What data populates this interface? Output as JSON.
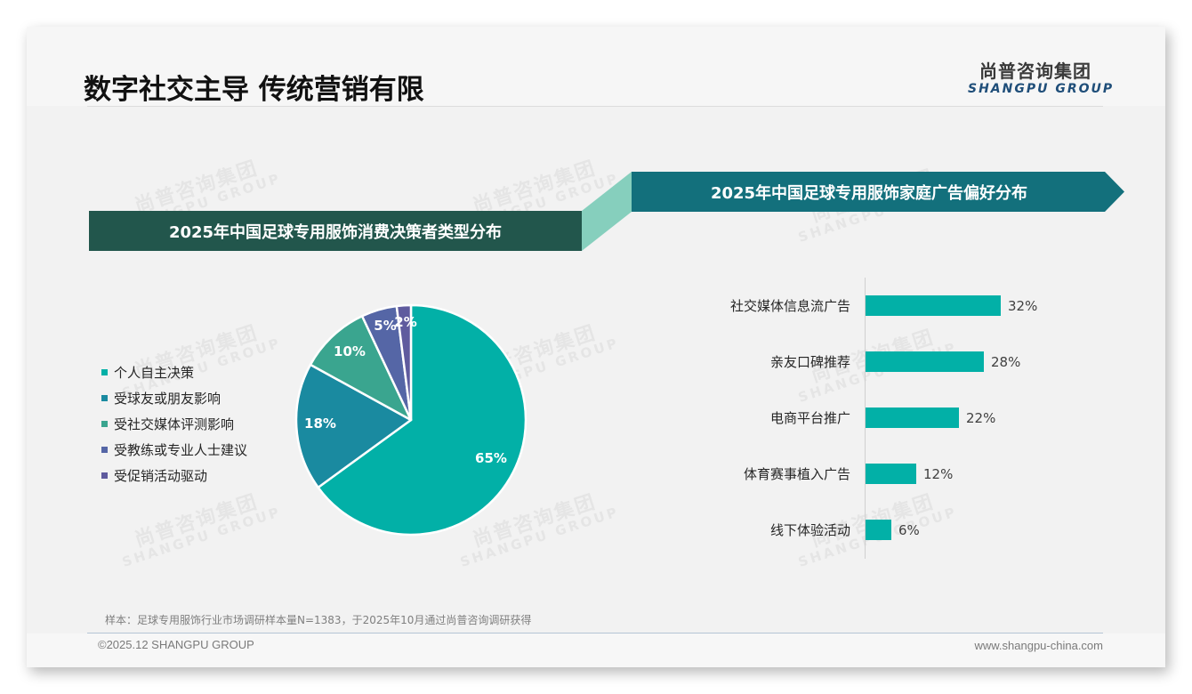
{
  "header": {
    "title": "数字社交主导 传统营销有限",
    "logo_cn": "尚普咨询集团",
    "logo_en": "SHANGPU GROUP"
  },
  "watermark": {
    "cn": "尚普咨询集团",
    "en": "SHANGPU GROUP"
  },
  "colors": {
    "banner_left": "#22564c",
    "banner_right": "#13707c",
    "connector": "#86cfbd",
    "bar": "#02b0a7",
    "pie": [
      "#02b0a7",
      "#1a8aa0",
      "#3aa58f",
      "#5566a6",
      "#5f5b9e"
    ]
  },
  "left_panel": {
    "banner_title": "2025年中国足球专用服饰消费决策者类型分布"
  },
  "right_panel": {
    "banner_title": "2025年中国足球专用服饰家庭广告偏好分布"
  },
  "chart_data": [
    {
      "type": "pie",
      "title": "2025年中国足球专用服饰消费决策者类型分布",
      "categories": [
        "个人自主决策",
        "受球友或朋友影响",
        "受社交媒体评测影响",
        "受教练或专业人士建议",
        "受促销活动驱动"
      ],
      "values": [
        65,
        18,
        10,
        5,
        2
      ],
      "labels": [
        "65%",
        "18%",
        "10%",
        "5%",
        "2%"
      ],
      "unit": "%",
      "legend_position": "left",
      "colors": [
        "#02b0a7",
        "#1a8aa0",
        "#3aa58f",
        "#5566a6",
        "#5f5b9e"
      ]
    },
    {
      "type": "bar",
      "orientation": "horizontal",
      "title": "2025年中国足球专用服饰家庭广告偏好分布",
      "categories": [
        "社交媒体信息流广告",
        "亲友口碑推荐",
        "电商平台推广",
        "体育赛事植入广告",
        "线下体验活动"
      ],
      "values": [
        32,
        28,
        22,
        12,
        6
      ],
      "labels": [
        "32%",
        "28%",
        "22%",
        "12%",
        "6%"
      ],
      "unit": "%",
      "xlabel": "",
      "ylabel": "",
      "xlim": [
        0,
        32
      ],
      "grid": false,
      "color": "#02b0a7"
    }
  ],
  "footer": {
    "footnote": "样本：足球专用服饰行业市场调研样本量N=1383，于2025年10月通过尚普咨询调研获得",
    "copyright": "©2025.12 SHANGPU GROUP",
    "website": "www.shangpu-china.com"
  }
}
